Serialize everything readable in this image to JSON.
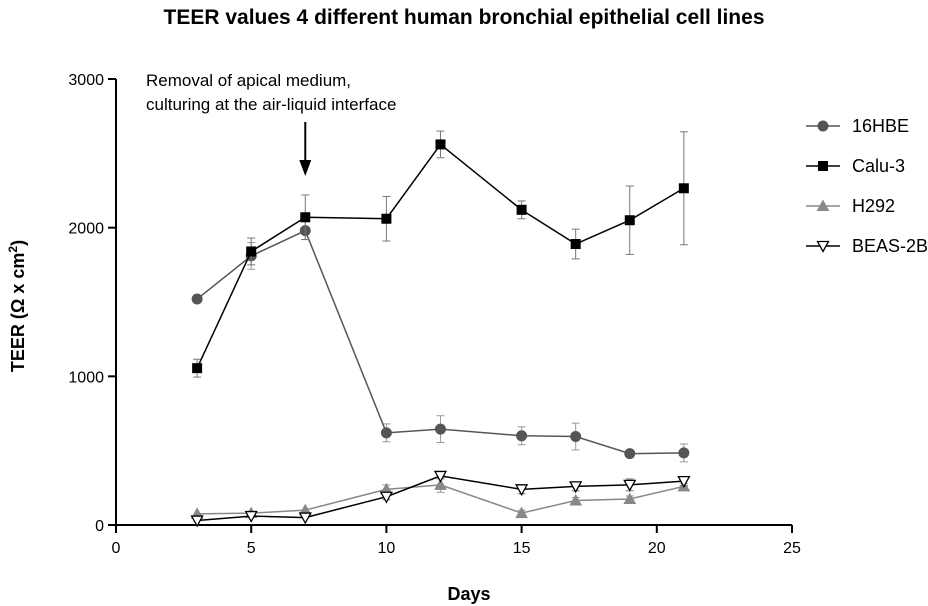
{
  "chart_data": {
    "type": "line",
    "title": "TEER values 4 different human bronchial epithelial cell lines",
    "xlabel": "Days",
    "ylabel_main": "TEER (Ω x cm",
    "ylabel_sup": "2",
    "ylabel_close": ")",
    "xlim": [
      0,
      25
    ],
    "ylim": [
      0,
      3000
    ],
    "xticks": [
      0,
      5,
      10,
      15,
      20,
      25
    ],
    "yticks": [
      0,
      1000,
      2000,
      3000
    ],
    "xtick_labels": [
      "0",
      "5",
      "10",
      "15",
      "20",
      "25"
    ],
    "ytick_labels": [
      "0",
      "1000",
      "2000",
      "3000"
    ],
    "annotation": {
      "line1": "Removal of apical medium,",
      "line2": "culturing at the air-liquid interface",
      "arrow_x": 7
    },
    "series": [
      {
        "name": "16HBE",
        "marker": "circle",
        "color": "#555555",
        "x": [
          3,
          5,
          7,
          10,
          12,
          15,
          17,
          19,
          21
        ],
        "y": [
          1520,
          1810,
          1980,
          620,
          645,
          600,
          595,
          480,
          485
        ],
        "err": [
          0,
          90,
          60,
          60,
          90,
          60,
          90,
          20,
          60
        ]
      },
      {
        "name": "Calu-3",
        "marker": "square",
        "color": "#000000",
        "x": [
          3,
          5,
          7,
          10,
          12,
          15,
          17,
          19,
          21
        ],
        "y": [
          1055,
          1840,
          2070,
          2060,
          2560,
          2120,
          1890,
          2050,
          2265
        ],
        "err": [
          60,
          90,
          150,
          150,
          90,
          60,
          100,
          230,
          380
        ]
      },
      {
        "name": "H292",
        "marker": "triangle-up",
        "color": "#888888",
        "x": [
          3,
          5,
          7,
          10,
          12,
          15,
          17,
          19,
          21
        ],
        "y": [
          75,
          80,
          100,
          240,
          270,
          80,
          165,
          175,
          260
        ],
        "err": [
          0,
          0,
          0,
          30,
          50,
          20,
          20,
          20,
          20
        ]
      },
      {
        "name": "BEAS-2B",
        "marker": "triangle-down",
        "color": "#000000",
        "x": [
          3,
          5,
          7,
          10,
          12,
          15,
          17,
          19,
          21
        ],
        "y": [
          30,
          60,
          50,
          190,
          330,
          240,
          260,
          270,
          295
        ],
        "err": [
          0,
          0,
          0,
          20,
          20,
          30,
          30,
          40,
          30
        ]
      }
    ],
    "legend_position": "right"
  }
}
